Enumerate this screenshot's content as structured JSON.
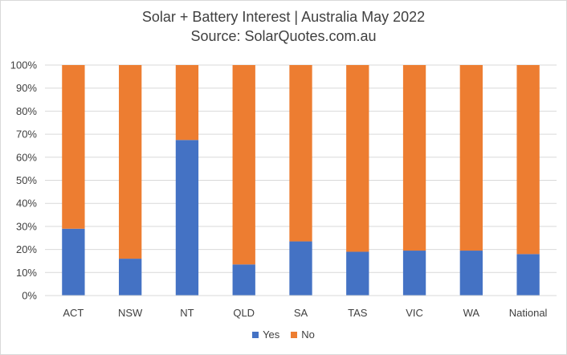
{
  "chart_data": {
    "type": "bar",
    "stacked": true,
    "percent": true,
    "title": "Solar + Battery Interest  | Australia May 2022",
    "subtitle": "Source: SolarQuotes.com.au",
    "categories": [
      "ACT",
      "NSW",
      "NT",
      "QLD",
      "SA",
      "TAS",
      "VIC",
      "WA",
      "National"
    ],
    "series": [
      {
        "name": "Yes",
        "color": "#4472c4",
        "values": [
          29,
          16,
          67.5,
          13.5,
          23.5,
          19,
          19.5,
          19.5,
          18
        ]
      },
      {
        "name": "No",
        "color": "#ed7d31",
        "values": [
          71,
          84,
          32.5,
          86.5,
          76.5,
          81,
          80.5,
          80.5,
          82
        ]
      }
    ],
    "ylim": [
      0,
      100
    ],
    "yticks": [
      "0%",
      "10%",
      "20%",
      "30%",
      "40%",
      "50%",
      "60%",
      "70%",
      "80%",
      "90%",
      "100%"
    ],
    "grid": true,
    "legend_position": "bottom"
  }
}
